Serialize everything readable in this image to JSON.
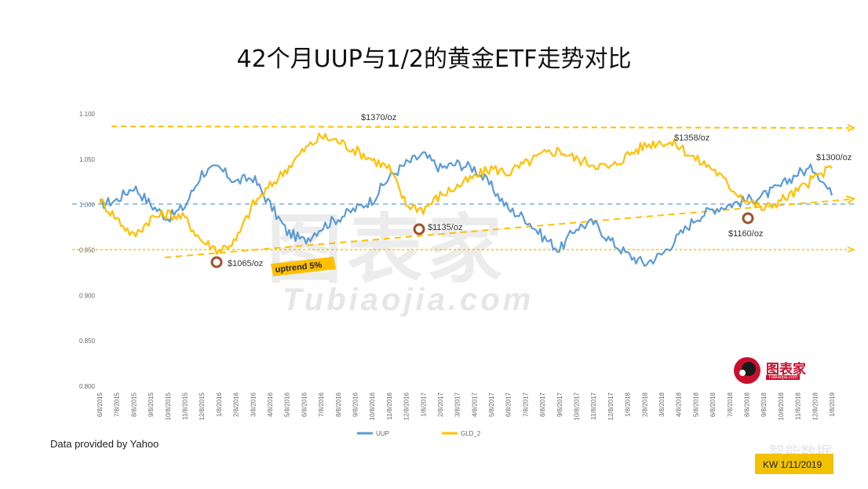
{
  "title": "42个月UUP与1/2的黄金ETF走势对比",
  "source": "Data provided by Yahoo",
  "credit": "KW 1/11/2019",
  "logo": {
    "name": "图表家",
    "sub": "Tubiaojia.com"
  },
  "watermark": {
    "main": "图表家",
    "sub": "Tubiaojia.com"
  },
  "corner_watermark": "智能数据",
  "colors": {
    "uup": "#5b9bd5",
    "gld": "#ffc000",
    "dash_orange": "#ffc000",
    "dash_blue": "#9dc3e6",
    "marker": "#a0522d"
  },
  "chart_data": {
    "type": "line",
    "ylim": [
      0.8,
      1.1
    ],
    "yticks": [
      "0.800",
      "0.850",
      "0.900",
      "0.950",
      "1.000",
      "1.050",
      "1.100"
    ],
    "x_labels": [
      "6/8/2015",
      "7/8/2015",
      "8/8/2015",
      "9/8/2015",
      "10/8/2015",
      "11/8/2015",
      "12/8/2015",
      "1/8/2016",
      "2/8/2016",
      "3/8/2016",
      "4/8/2016",
      "5/8/2016",
      "6/8/2016",
      "7/8/2016",
      "8/8/2016",
      "9/8/2016",
      "10/8/2016",
      "11/8/2016",
      "12/8/2016",
      "1/8/2017",
      "2/8/2017",
      "3/8/2017",
      "4/8/2017",
      "5/8/2017",
      "6/8/2017",
      "7/8/2017",
      "8/8/2017",
      "9/8/2017",
      "10/8/2017",
      "11/8/2017",
      "12/8/2017",
      "1/8/2018",
      "2/8/2018",
      "3/8/2018",
      "4/8/2018",
      "5/8/2018",
      "6/8/2018",
      "7/8/2018",
      "8/8/2018",
      "9/8/2018",
      "10/8/2018",
      "11/8/2018",
      "12/8/2018",
      "1/8/2019"
    ],
    "series": [
      {
        "name": "UUP",
        "values": [
          1.0,
          1.005,
          1.02,
          1.0,
          0.985,
          0.998,
          1.035,
          1.04,
          1.025,
          1.03,
          1.0,
          0.97,
          0.96,
          0.975,
          0.985,
          0.995,
          1.005,
          1.03,
          1.045,
          1.055,
          1.04,
          1.045,
          1.04,
          1.02,
          0.995,
          0.985,
          0.965,
          0.95,
          0.975,
          0.98,
          0.96,
          0.945,
          0.935,
          0.945,
          0.965,
          0.985,
          0.995,
          1.0,
          1.005,
          1.01,
          1.02,
          1.035,
          1.04,
          1.01
        ]
      },
      {
        "name": "GLD_2",
        "values": [
          1.005,
          0.985,
          0.965,
          0.985,
          0.99,
          0.985,
          0.96,
          0.95,
          0.96,
          1.0,
          1.02,
          1.04,
          1.06,
          1.075,
          1.07,
          1.06,
          1.05,
          1.04,
          1.0,
          0.995,
          1.01,
          1.02,
          1.03,
          1.04,
          1.035,
          1.045,
          1.055,
          1.06,
          1.05,
          1.045,
          1.04,
          1.055,
          1.065,
          1.07,
          1.065,
          1.05,
          1.04,
          1.02,
          1.005,
          0.995,
          1.005,
          1.015,
          1.03,
          1.04
        ]
      }
    ],
    "annotations": [
      {
        "text": "$1370/oz"
      },
      {
        "text": "$1358/oz"
      },
      {
        "text": "$1300/oz"
      },
      {
        "text": "$1135/oz"
      },
      {
        "text": "$1065/oz"
      },
      {
        "text": "$1160/oz"
      },
      {
        "text": "uptrend 5%"
      }
    ],
    "legend": {
      "position": "bottom"
    },
    "grid": false
  }
}
